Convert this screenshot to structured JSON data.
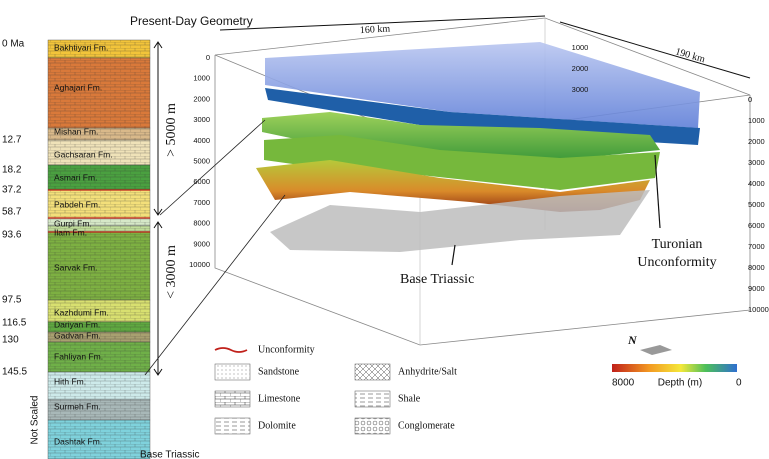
{
  "title": "Present-Day Geometry",
  "ages": [
    "0 Ma",
    12.7,
    18.2,
    37.2,
    58.7,
    93.6,
    97.5,
    116.5,
    130,
    145.5
  ],
  "formations": [
    "Bakhtiyari Fm.",
    "Aghajari Fm.",
    "Mishan Fm.",
    "Gachsaran Fm.",
    "Asmari Fm.",
    "Pabdeh Fm.",
    "Gurpi Fm.",
    "Ilam Fm.",
    "Sarvak Fm.",
    "Kazhdumi Fm.",
    "Dariyan Fm.",
    "Gadvan Fm.",
    "Fahliyan Fm.",
    "Hith Fm.",
    "Surmeh Fm.",
    "Dashtak Fm."
  ],
  "column_notes": {
    "upper_thickness": "> 5000 m",
    "lower_thickness": "< 3000 m",
    "not_scaled": "Not Scaled",
    "base": "Base Triassic"
  },
  "model": {
    "length_x": "160 km",
    "length_y": "190 km",
    "front_depths": [
      0,
      1000,
      2000,
      3000,
      4000,
      5000,
      6000,
      7000,
      8000,
      9000,
      10000
    ],
    "back_depths": [
      1000,
      2000,
      3000
    ],
    "right_depths": [
      0,
      1000,
      2000,
      3000,
      4000,
      5000,
      6000,
      7000,
      8000,
      9000,
      10000
    ],
    "turonian": [
      "Turonian",
      "Unconformity"
    ],
    "base_triassic": "Base Triassic"
  },
  "legend": {
    "unconformity": "Unconformity",
    "items": [
      "Sandstone",
      "Limestone",
      "Dolomite",
      "Anhydrite/Salt",
      "Shale",
      "Conglomerate"
    ]
  },
  "colorbar": {
    "north": "N",
    "min_label": "8000",
    "title": "Depth (m)",
    "max_label": "0"
  }
}
